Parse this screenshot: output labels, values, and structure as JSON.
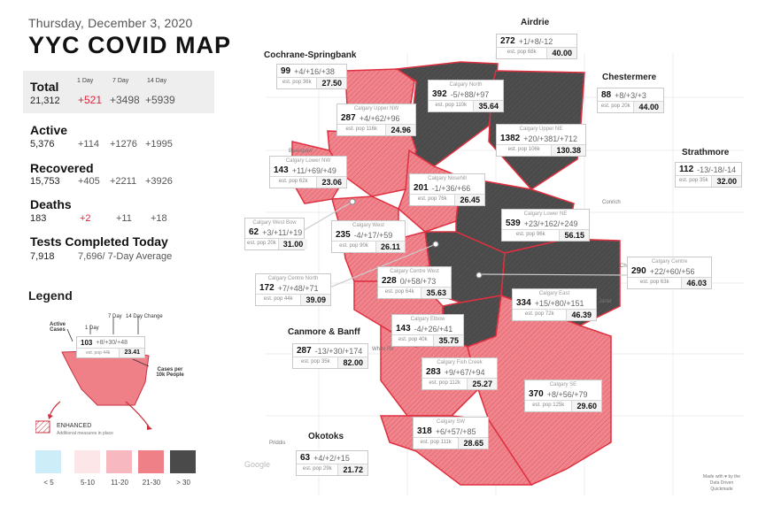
{
  "header": {
    "date": "Thursday, December 3, 2020",
    "title": "YYC COVID MAP"
  },
  "summary": {
    "cols": {
      "d1": "1 Day",
      "d7": "7 Day",
      "d14": "14 Day"
    },
    "total": {
      "label": "Total",
      "value": "21,312",
      "d1": "+521",
      "d7": "+3498",
      "d14": "+5939"
    },
    "active": {
      "label": "Active",
      "value": "5,376",
      "d1": "+114",
      "d7": "+1276",
      "d14": "+1995"
    },
    "recovered": {
      "label": "Recovered",
      "value": "15,753",
      "d1": "+405",
      "d7": "+2211",
      "d14": "+3926"
    },
    "deaths": {
      "label": "Deaths",
      "value": "183",
      "d1": "+2",
      "d7": "+11",
      "d14": "+18"
    },
    "tests": {
      "label": "Tests Completed Today",
      "value": "7,918",
      "avg": "7,696/ 7-Day Average"
    }
  },
  "legend": {
    "title": "Legend",
    "active_cases": "Active Cases",
    "one_day": "1 Day",
    "seven_day": "7 Day",
    "fourteen_day": "14 Day Change",
    "sample_value": "103",
    "sample_change": "+8/+30/+48",
    "sample_pop": "est. pop 44k",
    "sample_rate": "23.41",
    "cases_per": "Cases per 10k People",
    "enhanced": "ENHANCED",
    "enhanced_note": "Additional measures in place",
    "scale": [
      {
        "label": "< 5",
        "color": "#cdeef8"
      },
      {
        "label": "5-10",
        "color": "#fde6e8"
      },
      {
        "label": "11-20",
        "color": "#f7b9bf"
      },
      {
        "label": "21-30",
        "color": "#ef8088"
      },
      {
        "label": "> 30",
        "color": "#4a4a4a"
      }
    ]
  },
  "regions": {
    "cochrane": "Cochrane-Springbank",
    "airdrie": "Airdrie",
    "chestermere": "Chestermere",
    "strathmore": "Strathmore",
    "canmore": "Canmore & Banff",
    "okotoks": "Okotoks"
  },
  "cards": [
    {
      "id": "cochrane",
      "name": "",
      "num": "99",
      "chg": "+4/+16/+38",
      "pop": "est. pop 36k",
      "rate": "27.50"
    },
    {
      "id": "airdrie",
      "name": "",
      "num": "272",
      "chg": "+1/+8/-12",
      "pop": "est. pop 68k",
      "rate": "40.00"
    },
    {
      "id": "chestermere",
      "name": "",
      "num": "88",
      "chg": "+8/+3/+3",
      "pop": "est. pop 20k",
      "rate": "44.00"
    },
    {
      "id": "strathmore",
      "name": "",
      "num": "112",
      "chg": "-13/-18/-14",
      "pop": "est. pop 35k",
      "rate": "32.00"
    },
    {
      "id": "calgary-north",
      "name": "Calgary North",
      "num": "392",
      "chg": "-5/+88/+97",
      "pop": "est. pop 110k",
      "rate": "35.64"
    },
    {
      "id": "calgary-upper-nw",
      "name": "Calgary Upper NW",
      "num": "287",
      "chg": "+4/+62/+96",
      "pop": "est. pop 116k",
      "rate": "24.96"
    },
    {
      "id": "calgary-upper-ne",
      "name": "Calgary Upper NE",
      "num": "1382",
      "chg": "+20/+381/+712",
      "pop": "est. pop 106k",
      "rate": "130.38"
    },
    {
      "id": "calgary-lower-nw",
      "name": "Calgary Lower NW",
      "num": "143",
      "chg": "+11/+69/+49",
      "pop": "est. pop 62k",
      "rate": "23.06"
    },
    {
      "id": "calgary-nosehill",
      "name": "Calgary Nosehill",
      "num": "201",
      "chg": "-1/+36/+66",
      "pop": "est. pop 76k",
      "rate": "26.45"
    },
    {
      "id": "calgary-west-bow",
      "name": "Calgary West Bow",
      "num": "62",
      "chg": "+3/+11/+19",
      "pop": "est. pop 20k",
      "rate": "31.00"
    },
    {
      "id": "calgary-west",
      "name": "Calgary West",
      "num": "235",
      "chg": "-4/+17/+59",
      "pop": "est. pop 90k",
      "rate": "26.11"
    },
    {
      "id": "calgary-lower-ne",
      "name": "Calgary Lower NE",
      "num": "539",
      "chg": "+23/+162/+249",
      "pop": "est. pop 96k",
      "rate": "56.15"
    },
    {
      "id": "calgary-centre-north",
      "name": "Calgary Centre North",
      "num": "172",
      "chg": "+7/+48/+71",
      "pop": "est. pop 44k",
      "rate": "39.09"
    },
    {
      "id": "calgary-centre-west",
      "name": "Calgary Centre West",
      "num": "228",
      "chg": "0/+58/+73",
      "pop": "est. pop 64k",
      "rate": "35.63"
    },
    {
      "id": "calgary-centre",
      "name": "Calgary Centre",
      "num": "290",
      "chg": "+22/+60/+56",
      "pop": "est. pop 63k",
      "rate": "46.03"
    },
    {
      "id": "calgary-east",
      "name": "Calgary East",
      "num": "334",
      "chg": "+15/+80/+151",
      "pop": "est. pop 72k",
      "rate": "46.39"
    },
    {
      "id": "calgary-elbow",
      "name": "Calgary Elbow",
      "num": "143",
      "chg": "-4/+26/+41",
      "pop": "est. pop 40k",
      "rate": "35.75"
    },
    {
      "id": "canmore",
      "name": "",
      "num": "287",
      "chg": "-13/+30/+174",
      "pop": "est. pop 35k",
      "rate": "82.00"
    },
    {
      "id": "calgary-fish-creek",
      "name": "Calgary Fish Creek",
      "num": "283",
      "chg": "+9/+67/+94",
      "pop": "est. pop 112k",
      "rate": "25.27"
    },
    {
      "id": "calgary-se",
      "name": "Calgary SE",
      "num": "370",
      "chg": "+8/+56/+79",
      "pop": "est. pop 125k",
      "rate": "29.60"
    },
    {
      "id": "calgary-sw",
      "name": "Calgary SW",
      "num": "318",
      "chg": "+6/+57/+85",
      "pop": "est. pop 111k",
      "rate": "28.65"
    },
    {
      "id": "okotoks",
      "name": "",
      "num": "63",
      "chg": "+4/+2/+15",
      "pop": "est. pop 29k",
      "rate": "21.72"
    }
  ],
  "map_labels": {
    "bearspaw": "Bearspaw",
    "conrich": "Conrich",
    "chestermere_town": "Chestermere",
    "janet": "Janet",
    "white_rk": "White Rk",
    "priddis": "Priddis",
    "google": "Google"
  },
  "credit": "Made with ♥ by the Data Driven Quickmade",
  "colors": {
    "accent": "#e0223a",
    "dark": "#4a4a4a",
    "pink": "#ef8088"
  }
}
